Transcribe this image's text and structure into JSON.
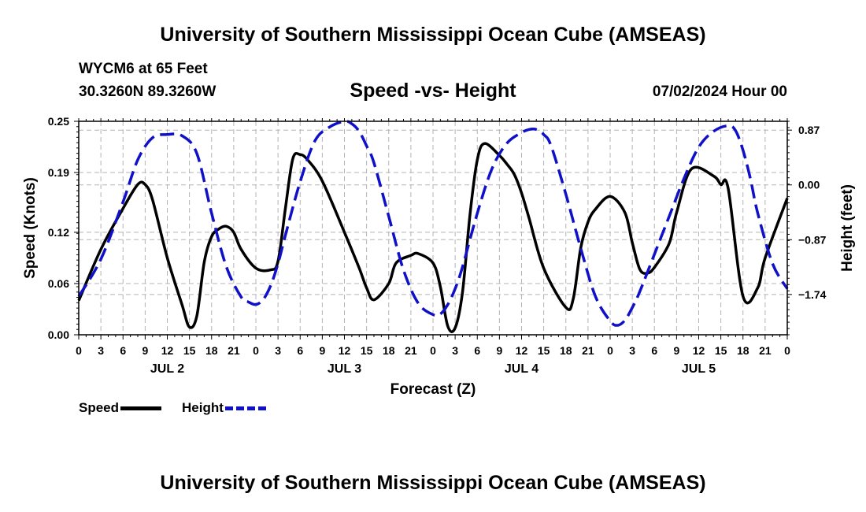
{
  "header": {
    "title": "University of Southern Mississippi Ocean Cube (AMSEAS)",
    "station": "WYCM6 at 65 Feet",
    "coords": "30.3260N  89.3260W",
    "subtitle": "Speed -vs- Height",
    "datetime": "07/02/2024 Hour 00"
  },
  "footer": {
    "title": "University of Southern Mississippi Ocean Cube (AMSEAS)"
  },
  "legend": {
    "speed": "Speed",
    "height": "Height"
  },
  "colors": {
    "speed": "#000000",
    "height": "#1010c8",
    "grid": "#b4b4b4"
  },
  "chart_data": {
    "type": "line",
    "title": "Speed -vs- Height",
    "xlabel": "Forecast (Z)",
    "ylabel_left": "Speed (Knots)",
    "ylabel_right": "Height (feet)",
    "xlim": [
      0,
      96
    ],
    "ylim_left": [
      0,
      0.25
    ],
    "ylim_right": [
      -2.38,
      1.01
    ],
    "x_ticks": [
      0,
      3,
      6,
      9,
      12,
      15,
      18,
      21,
      24,
      27,
      30,
      33,
      36,
      39,
      42,
      45,
      48,
      51,
      54,
      57,
      60,
      63,
      66,
      69,
      72,
      75,
      78,
      81,
      84,
      87,
      90,
      93,
      96
    ],
    "x_tick_labels": [
      "0",
      "3",
      "6",
      "9",
      "12",
      "15",
      "18",
      "21",
      "0",
      "3",
      "6",
      "9",
      "12",
      "15",
      "18",
      "21",
      "0",
      "3",
      "6",
      "9",
      "12",
      "15",
      "18",
      "21",
      "0",
      "3",
      "6",
      "9",
      "12",
      "15",
      "18",
      "21",
      "0"
    ],
    "day_labels": [
      {
        "x": 12,
        "label": "JUL 2"
      },
      {
        "x": 36,
        "label": "JUL 3"
      },
      {
        "x": 60,
        "label": "JUL 4"
      },
      {
        "x": 84,
        "label": "JUL 5"
      }
    ],
    "left_ticks": [
      0.0,
      0.06,
      0.12,
      0.19,
      0.25
    ],
    "left_tick_labels": [
      "0.00",
      "0.06",
      "0.12",
      "0.19",
      "0.25"
    ],
    "right_ticks": [
      0.87,
      0.0,
      -0.87,
      -1.74
    ],
    "right_tick_labels": [
      "0.87",
      "0.00",
      "−0.87",
      "−1.74"
    ],
    "grid": true,
    "legend_position": "bottom-left",
    "series": [
      {
        "name": "Speed",
        "axis": "left",
        "x": [
          0,
          3,
          6,
          8,
          9,
          10,
          12,
          14,
          15,
          16,
          17,
          18,
          19,
          20,
          21,
          22,
          24,
          26,
          27,
          28,
          29,
          30,
          31,
          33,
          36,
          38,
          39,
          40,
          42,
          43,
          45,
          46,
          48,
          49,
          50,
          51,
          52,
          53,
          54,
          55,
          57,
          58,
          59,
          60,
          61,
          63,
          66,
          67,
          68,
          69,
          70,
          72,
          74,
          75,
          76,
          77,
          78,
          80,
          81,
          83,
          86,
          87,
          88,
          90,
          92,
          93,
          96
        ],
        "y": [
          0.04,
          0.1,
          0.148,
          0.176,
          0.176,
          0.158,
          0.09,
          0.035,
          0.009,
          0.022,
          0.085,
          0.115,
          0.124,
          0.127,
          0.12,
          0.1,
          0.078,
          0.076,
          0.086,
          0.148,
          0.206,
          0.211,
          0.205,
          0.18,
          0.12,
          0.078,
          0.055,
          0.041,
          0.06,
          0.084,
          0.093,
          0.095,
          0.084,
          0.056,
          0.01,
          0.008,
          0.05,
          0.14,
          0.205,
          0.224,
          0.21,
          0.2,
          0.188,
          0.166,
          0.137,
          0.078,
          0.032,
          0.042,
          0.101,
          0.132,
          0.147,
          0.162,
          0.143,
          0.108,
          0.077,
          0.072,
          0.079,
          0.107,
          0.143,
          0.194,
          0.186,
          0.176,
          0.171,
          0.045,
          0.055,
          0.09,
          0.16
        ]
      },
      {
        "name": "Height",
        "axis": "right",
        "x": [
          0,
          3,
          6,
          8,
          10,
          12,
          14,
          16,
          18,
          20,
          22,
          23,
          24,
          25,
          26,
          27,
          28,
          30,
          32,
          34,
          36,
          37,
          38,
          39,
          40,
          42,
          44,
          46,
          48,
          49,
          50,
          51,
          52,
          54,
          56,
          58,
          60,
          61,
          62,
          63,
          64,
          66,
          68,
          70,
          72,
          73,
          74,
          75,
          76,
          78,
          80,
          82,
          84,
          86,
          88,
          89,
          90,
          91,
          92,
          94,
          96
        ],
        "y": [
          -1.77,
          -1.18,
          -0.27,
          0.4,
          0.75,
          0.8,
          0.78,
          0.5,
          -0.45,
          -1.3,
          -1.78,
          -1.86,
          -1.9,
          -1.82,
          -1.6,
          -1.25,
          -0.8,
          0.05,
          0.7,
          0.92,
          1.01,
          0.97,
          0.85,
          0.62,
          0.35,
          -0.5,
          -1.35,
          -1.88,
          -2.06,
          -2.05,
          -1.9,
          -1.65,
          -1.3,
          -0.45,
          0.26,
          0.66,
          0.83,
          0.88,
          0.88,
          0.8,
          0.62,
          -0.15,
          -1.0,
          -1.77,
          -2.16,
          -2.23,
          -2.15,
          -1.95,
          -1.7,
          -1.1,
          -0.5,
          0.1,
          0.6,
          0.85,
          0.94,
          0.86,
          0.55,
          0.1,
          -0.45,
          -1.25,
          -1.65
        ]
      }
    ]
  }
}
